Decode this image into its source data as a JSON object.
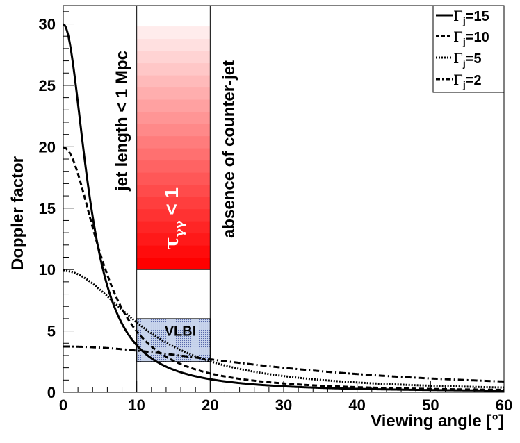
{
  "chart_data": {
    "type": "line",
    "xlabel": "Viewing angle [°]",
    "ylabel": "Doppler factor",
    "xlim": [
      0,
      60
    ],
    "ylim": [
      0,
      31.5
    ],
    "xticks": [
      0,
      10,
      20,
      30,
      40,
      50,
      60
    ],
    "yticks": [
      0,
      5,
      10,
      15,
      20,
      25,
      30
    ],
    "x_tick_labels": [
      "0",
      "10",
      "20",
      "30",
      "40",
      "50",
      "60"
    ],
    "y_tick_labels": [
      "0",
      "5",
      "10",
      "15",
      "20",
      "25",
      "30"
    ],
    "grid": false,
    "legend_position": "top-right",
    "series": [
      {
        "name_prefix": "Γ",
        "name_sub": "j",
        "name_suffix": "=15",
        "gamma": 15,
        "dash": "solid"
      },
      {
        "name_prefix": "Γ",
        "name_sub": "j",
        "name_suffix": "=10",
        "gamma": 10,
        "dash": "dashed"
      },
      {
        "name_prefix": "Γ",
        "name_sub": "j",
        "name_suffix": "=5",
        "gamma": 5,
        "dash": "dotted"
      },
      {
        "name_prefix": "Γ",
        "name_sub": "j",
        "name_suffix": "=2",
        "gamma": 2,
        "dash": "dashdot"
      }
    ],
    "shaded_regions": [
      {
        "id": "tau",
        "x": [
          10,
          20
        ],
        "y": [
          10,
          29.8
        ],
        "color_bottom": "#ff0000",
        "color_top": "#ffecec"
      },
      {
        "id": "vlbi",
        "x": [
          10,
          20
        ],
        "y": [
          2.5,
          6
        ],
        "fill": "#c8d4ec",
        "label": "VLBI"
      }
    ],
    "vertical_lines": [
      10,
      20
    ],
    "annotations": {
      "jet_length": "jet length < 1 Mpc",
      "counter_jet": "absence of counter-jet",
      "tau_prefix": "τ",
      "tau_sub": "γγ",
      "tau_suffix": " < 1"
    }
  }
}
